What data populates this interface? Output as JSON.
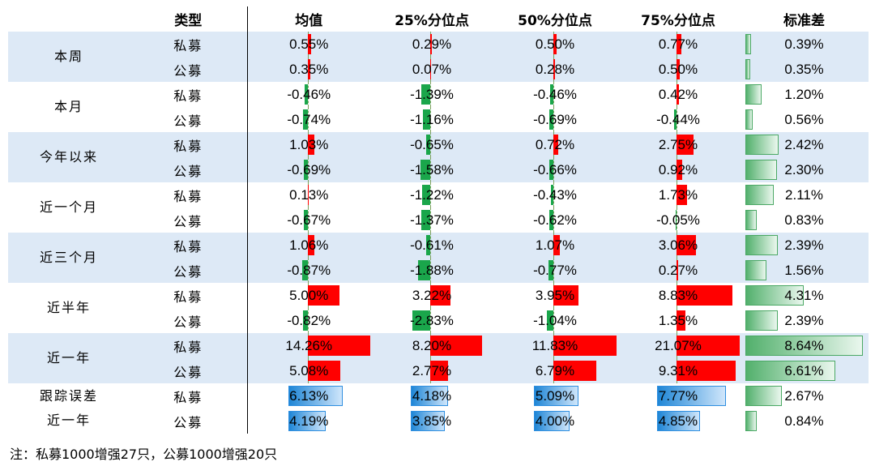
{
  "columns": {
    "type": "类型",
    "mean": "均值",
    "p25": "25%分位点",
    "p50": "50%分位点",
    "p75": "75%分位点",
    "std": "标准差"
  },
  "colors": {
    "shade": "#dde9f6",
    "positive": "#ff0000",
    "negative": "#1aa64b",
    "blue": "#1f86d6",
    "green": "#52b06c"
  },
  "groups": [
    {
      "label": "本周",
      "rows": [
        {
          "type": "私募",
          "mean": "0.55%",
          "p25": "0.29%",
          "p50": "0.50%",
          "p75": "0.77%",
          "std": "0.39%"
        },
        {
          "type": "公募",
          "mean": "0.35%",
          "p25": "0.07%",
          "p50": "0.28%",
          "p75": "0.50%",
          "std": "0.35%"
        }
      ]
    },
    {
      "label": "本月",
      "rows": [
        {
          "type": "私募",
          "mean": "-0.46%",
          "p25": "-1.39%",
          "p50": "-0.46%",
          "p75": "0.42%",
          "std": "1.20%"
        },
        {
          "type": "公募",
          "mean": "-0.74%",
          "p25": "-1.16%",
          "p50": "-0.69%",
          "p75": "-0.44%",
          "std": "0.56%"
        }
      ]
    },
    {
      "label": "今年以来",
      "rows": [
        {
          "type": "私募",
          "mean": "1.03%",
          "p25": "-0.65%",
          "p50": "0.72%",
          "p75": "2.75%",
          "std": "2.42%"
        },
        {
          "type": "公募",
          "mean": "-0.69%",
          "p25": "-1.58%",
          "p50": "-0.66%",
          "p75": "0.92%",
          "std": "2.30%"
        }
      ]
    },
    {
      "label": "近一个月",
      "rows": [
        {
          "type": "私募",
          "mean": "0.13%",
          "p25": "-1.22%",
          "p50": "-0.43%",
          "p75": "1.73%",
          "std": "2.11%"
        },
        {
          "type": "公募",
          "mean": "-0.67%",
          "p25": "-1.37%",
          "p50": "-0.62%",
          "p75": "-0.05%",
          "std": "0.83%"
        }
      ]
    },
    {
      "label": "近三个月",
      "rows": [
        {
          "type": "私募",
          "mean": "1.06%",
          "p25": "-0.61%",
          "p50": "1.07%",
          "p75": "3.06%",
          "std": "2.39%"
        },
        {
          "type": "公募",
          "mean": "-0.87%",
          "p25": "-1.88%",
          "p50": "-0.77%",
          "p75": "0.27%",
          "std": "1.56%"
        }
      ]
    },
    {
      "label": "近半年",
      "rows": [
        {
          "type": "私募",
          "mean": "5.00%",
          "p25": "3.22%",
          "p50": "3.95%",
          "p75": "8.83%",
          "std": "4.31%"
        },
        {
          "type": "公募",
          "mean": "-0.82%",
          "p25": "-2.83%",
          "p50": "-1.04%",
          "p75": "1.35%",
          "std": "2.39%"
        }
      ]
    },
    {
      "label": "近一年",
      "rows": [
        {
          "type": "私募",
          "mean": "14.26%",
          "p25": "8.20%",
          "p50": "11.83%",
          "p75": "21.07%",
          "std": "8.64%"
        },
        {
          "type": "公募",
          "mean": "5.08%",
          "p25": "2.77%",
          "p50": "6.79%",
          "p75": "9.31%",
          "std": "6.61%"
        }
      ]
    },
    {
      "label": "跟踪误差近一年",
      "labelLines": [
        "跟踪误差",
        "近一年"
      ],
      "tracking": true,
      "rows": [
        {
          "type": "私募",
          "mean": "6.13%",
          "p25": "4.18%",
          "p50": "5.09%",
          "p75": "7.77%",
          "std": "2.67%"
        },
        {
          "type": "公募",
          "mean": "4.19%",
          "p25": "3.85%",
          "p50": "4.00%",
          "p75": "4.85%",
          "std": "0.84%"
        }
      ]
    }
  ],
  "note": "注：私募1000增强27只，公募1000增强20只"
}
